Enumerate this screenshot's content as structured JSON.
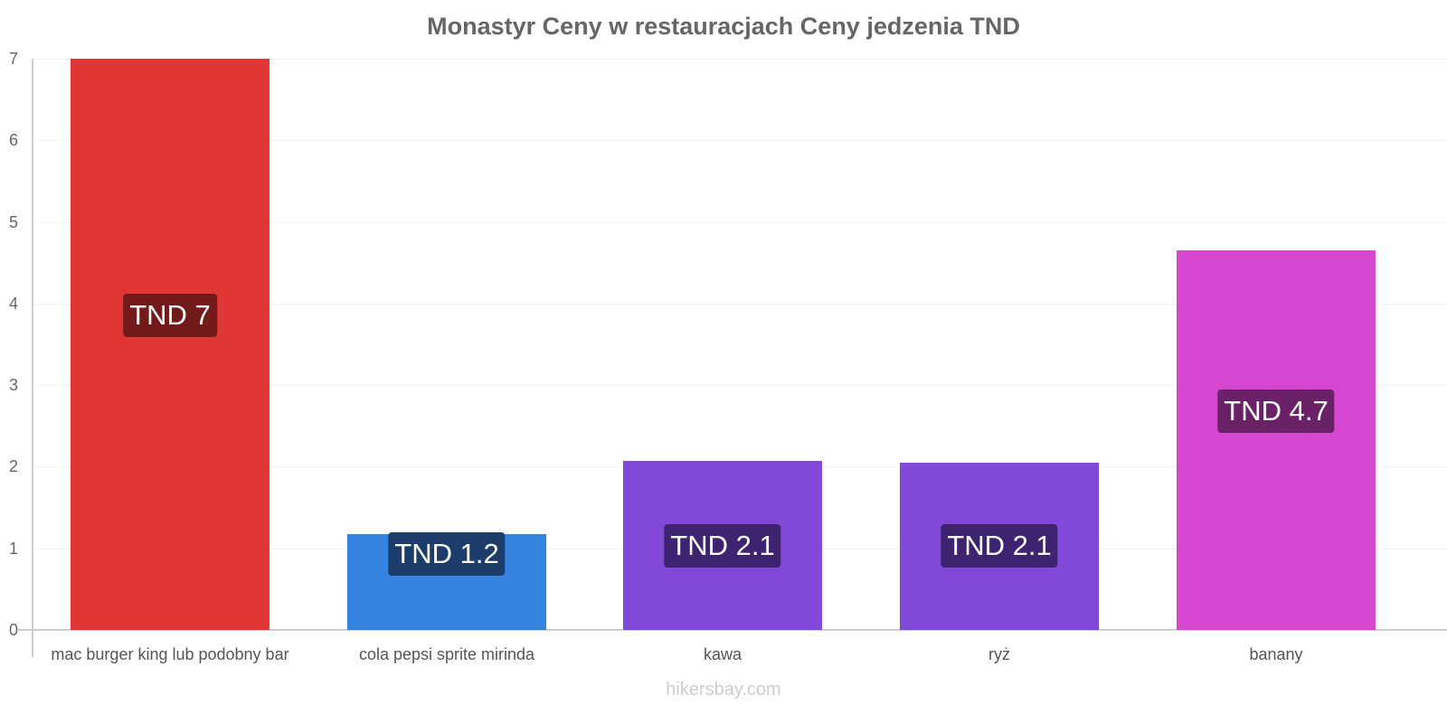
{
  "chart_data": {
    "type": "bar",
    "title": "Monastyr Ceny w restauracjach Ceny jedzenia TND",
    "xlabel": "",
    "ylabel": "",
    "ylim": [
      0,
      7
    ],
    "yticks": [
      "0",
      "1",
      "2",
      "3",
      "4",
      "5",
      "6",
      "7"
    ],
    "grid": true,
    "legend": null,
    "categories": [
      "mac burger king lub podobny bar",
      "cola pepsi sprite mirinda",
      "kawa",
      "ryż",
      "banany"
    ],
    "values": [
      7.0,
      1.17,
      2.07,
      2.05,
      4.65
    ],
    "data_labels": [
      "TND 7",
      "TND 1.2",
      "TND 2.1",
      "TND 2.1",
      "TND 4.7"
    ],
    "colors": [
      "#e03636",
      "#3584e0",
      "#8249d8",
      "#8249d8",
      "#d546d1"
    ],
    "label_bg_colors": [
      "#731b1b",
      "#1c3d6a",
      "#3e2470",
      "#3e2470",
      "#6b2168"
    ]
  },
  "watermark": "hikersbay.com"
}
